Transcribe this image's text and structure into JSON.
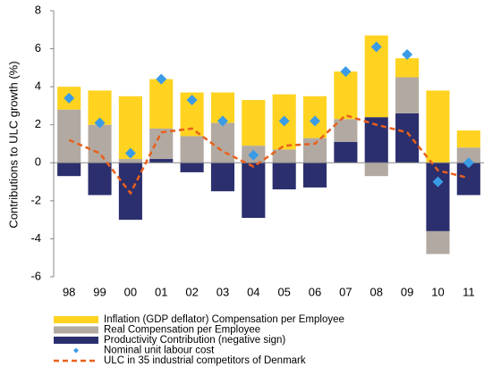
{
  "chart_data": {
    "type": "bar",
    "y_label": "Contributions to ULC growth (%)",
    "categories": [
      "98",
      "99",
      "00",
      "01",
      "02",
      "03",
      "04",
      "05",
      "06",
      "07",
      "08",
      "09",
      "10",
      "11"
    ],
    "series": [
      {
        "name": "Inflation (GDP deflator) Compensation per Employee",
        "kind": "bar",
        "color": "#ffd320",
        "values": [
          1.2,
          1.8,
          3.3,
          2.6,
          2.3,
          1.6,
          2.4,
          2.9,
          2.2,
          2.5,
          4.3,
          1.0,
          3.8,
          0.9
        ]
      },
      {
        "name": "Real Compensation per Employee",
        "kind": "bar",
        "color": "#b2aaa2",
        "values": [
          2.8,
          2.0,
          0.2,
          1.6,
          1.4,
          2.1,
          0.9,
          0.7,
          1.3,
          1.2,
          -0.7,
          1.9,
          -1.2,
          0.8
        ]
      },
      {
        "name": "Productivity Contribution (negative sign)",
        "kind": "bar",
        "color": "#2c2f6e",
        "values": [
          -0.7,
          -1.7,
          -3.0,
          0.2,
          -0.5,
          -1.5,
          -2.9,
          -1.4,
          -1.3,
          1.1,
          2.4,
          2.6,
          -3.6,
          -1.7
        ]
      },
      {
        "name": "Nominal unit labour cost",
        "kind": "scatter",
        "color": "#3a9be6",
        "values": [
          3.4,
          2.1,
          0.5,
          4.4,
          3.3,
          2.2,
          0.4,
          2.2,
          2.2,
          4.8,
          6.1,
          5.7,
          -1.0,
          0.0
        ]
      },
      {
        "name": "ULC in 35 industrial competitors of Denmark",
        "kind": "line",
        "color": "#e8601c",
        "values": [
          1.2,
          0.5,
          -1.6,
          1.6,
          1.8,
          0.6,
          -0.2,
          0.9,
          1.0,
          2.5,
          2.0,
          1.6,
          -0.4,
          -0.8
        ]
      }
    ],
    "ylim": [
      -6,
      8
    ],
    "yticks": [
      -6,
      -4,
      -2,
      0,
      2,
      4,
      6,
      8
    ]
  }
}
